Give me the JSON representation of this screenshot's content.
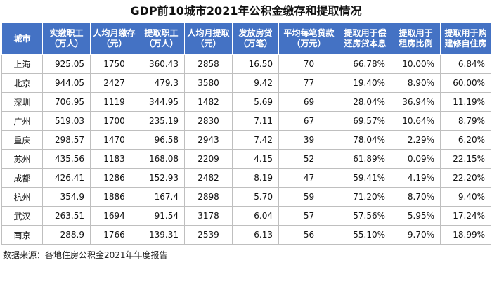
{
  "title": "GDP前10城市2021年公积金缴存和提取情况",
  "table": {
    "headers": [
      "城市",
      "实缴职工\n（万人）",
      "人均月缴存\n（元）",
      "提取职工\n（万人）",
      "人均月提取\n（元）",
      "发放房贷\n（万笔）",
      "平均每笔贷款\n（万元）",
      "提取用于偿\n还房贷本息",
      "提取用于\n租房比例",
      "提取用于购\n建修自住房"
    ],
    "rows": [
      [
        "上海",
        "925.05",
        "1750",
        "360.43",
        "2858",
        "16.50",
        "70",
        "66.78%",
        "10.00%",
        "6.84%"
      ],
      [
        "北京",
        "944.05",
        "2427",
        "479.3",
        "3580",
        "9.42",
        "77",
        "19.40%",
        "8.90%",
        "60.00%"
      ],
      [
        "深圳",
        "706.95",
        "1119",
        "344.95",
        "1482",
        "5.69",
        "69",
        "28.04%",
        "36.94%",
        "11.19%"
      ],
      [
        "广州",
        "519.03",
        "1700",
        "235.19",
        "2830",
        "7.11",
        "67",
        "69.57%",
        "10.64%",
        "8.79%"
      ],
      [
        "重庆",
        "298.57",
        "1470",
        "96.58",
        "2943",
        "7.42",
        "39",
        "78.04%",
        "2.29%",
        "6.20%"
      ],
      [
        "苏州",
        "435.56",
        "1183",
        "168.08",
        "2209",
        "4.15",
        "52",
        "61.89%",
        "0.09%",
        "22.15%"
      ],
      [
        "成都",
        "426.41",
        "1286",
        "152.93",
        "2482",
        "8.19",
        "47",
        "59.41%",
        "4.19%",
        "22.20%"
      ],
      [
        "杭州",
        "354.9",
        "1886",
        "167.4",
        "2898",
        "5.70",
        "59",
        "71.20%",
        "8.70%",
        "9.40%"
      ],
      [
        "武汉",
        "263.51",
        "1694",
        "91.54",
        "3178",
        "6.04",
        "57",
        "57.56%",
        "5.95%",
        "17.24%"
      ],
      [
        "南京",
        "288.9",
        "1766",
        "139.31",
        "2539",
        "6.13",
        "56",
        "55.10%",
        "9.70%",
        "18.99%"
      ]
    ]
  },
  "source": "数据来源：各地住房公积金2021年年度报告",
  "colors": {
    "header_bg": "#4472c4",
    "header_text": "#ffffff",
    "grid_line": "#bfbfbf"
  }
}
